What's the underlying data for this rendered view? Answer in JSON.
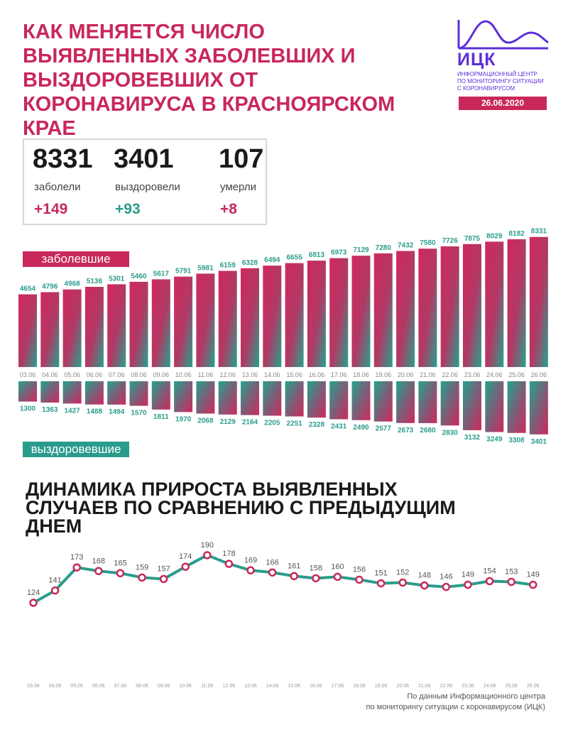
{
  "header": {
    "title": "КАК МЕНЯЕТСЯ ЧИСЛО ВЫЯВЛЕННЫХ ЗАБОЛЕВШИХ И ВЫЗДОРОВЕВШИХ ОТ КОРОНАВИРУСА В КРАСНОЯРСКОМ КРАЕ",
    "date": "26.06.2020"
  },
  "logo": {
    "abbr": "ИЦК",
    "line1": "ИНФОРМАЦИОННЫЙ ЦЕНТР",
    "line2": "ПО МОНИТОРИНГУ СИТУАЦИИ",
    "line3": "С КОРОНАВИРУСОМ"
  },
  "summary": {
    "infected": {
      "value": "8331",
      "label": "заболели",
      "delta": "+149"
    },
    "recovered": {
      "value": "3401",
      "label": "выздоровели",
      "delta": "+93"
    },
    "died": {
      "value": "107",
      "label": "умерли",
      "delta": "+8"
    }
  },
  "colors": {
    "accent": "#c8285a",
    "teal": "#2a9c8c",
    "logo": "#5c2fd9",
    "text": "#1a1a1a"
  },
  "legend": {
    "infected": "заболевшие",
    "recovered": "выздоровевшие"
  },
  "chart_data": [
    {
      "type": "bar",
      "categories": [
        "03.06",
        "04.06",
        "05.06",
        "06.06",
        "07.06",
        "08.06",
        "09.06",
        "10.06",
        "11.06",
        "12.06",
        "13.06",
        "14.06",
        "15.06",
        "16.06",
        "17.06",
        "18.06",
        "19.06",
        "20.06",
        "21.06",
        "22.06",
        "23.06",
        "24.06",
        "25.06",
        "26.06"
      ],
      "series": [
        {
          "name": "заболевшие",
          "values": [
            4654,
            4796,
            4968,
            5136,
            5301,
            5460,
            5617,
            5791,
            5981,
            6159,
            6328,
            6494,
            6655,
            6813,
            6973,
            7129,
            7280,
            7432,
            7580,
            7726,
            7875,
            8029,
            8182,
            8331
          ]
        },
        {
          "name": "выздоровевшие",
          "values": [
            1300,
            1363,
            1427,
            1488,
            1494,
            1570,
            1811,
            1970,
            2068,
            2129,
            2164,
            2205,
            2251,
            2328,
            2431,
            2490,
            2577,
            2673,
            2680,
            2830,
            3132,
            3249,
            3308,
            3401
          ]
        }
      ]
    },
    {
      "type": "line",
      "title": "ДИНАМИКА ПРИРОСТА ВЫЯВЛЕННЫХ СЛУЧАЕВ ПО СРАВНЕНИЮ С ПРЕДЫДУЩИМ ДНЕМ",
      "categories": [
        "03.06",
        "04.06",
        "05.06",
        "06.06",
        "07.06",
        "08.06",
        "09.06",
        "10.06",
        "11.06",
        "12.06",
        "13.06",
        "14.06",
        "15.06",
        "16.06",
        "17.06",
        "18.06",
        "19.06",
        "20.06",
        "21.06",
        "22.06",
        "23.06",
        "24.06",
        "25.06",
        "26.06"
      ],
      "values": [
        124,
        141,
        173,
        168,
        165,
        159,
        157,
        174,
        190,
        178,
        169,
        166,
        161,
        158,
        160,
        156,
        151,
        152,
        148,
        146,
        149,
        154,
        153,
        149
      ]
    }
  ],
  "source": {
    "line1": "По данным Информационного центра",
    "line2": "по мониторингу ситуации с коронавирусом (ИЦК)"
  }
}
